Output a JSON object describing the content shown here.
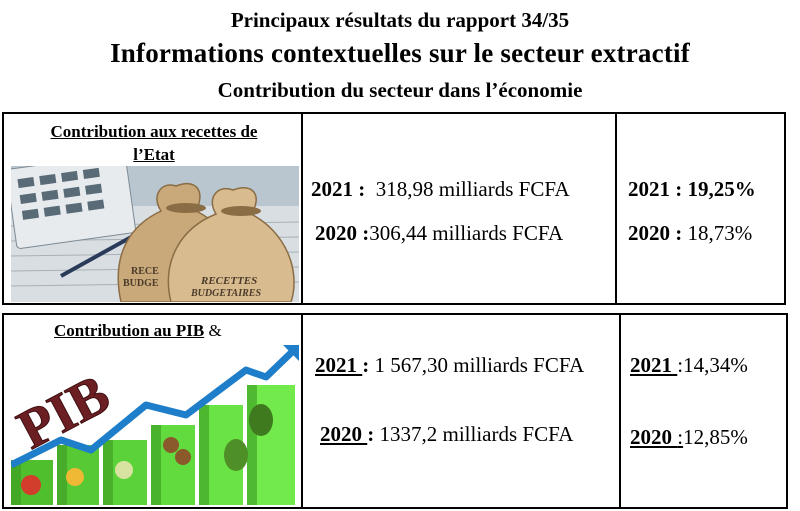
{
  "header": {
    "line1": "Principaux résultats du rapport 34/35",
    "line2": "Informations contextuelles sur le secteur extractif",
    "line3": "Contribution du secteur dans l’économie"
  },
  "recettes": {
    "caption_a": "Contribution aux recettes de",
    "caption_b": "l’Etat",
    "image_bag_labels": [
      "RECETTES BUDGETAIRES",
      "RECETTES BUDGETAIRES"
    ],
    "amounts": [
      {
        "year": "2021 :",
        "value": "318,98 milliards FCFA"
      },
      {
        "year": "2020 :",
        "value": "306,44 milliards FCFA"
      }
    ],
    "percents": [
      {
        "year": "2021 :",
        "value": "19,25%"
      },
      {
        "year": "2020 :",
        "value": "18,73%"
      }
    ]
  },
  "pib": {
    "caption_a": "Contribution au PIB",
    "caption_b": "&",
    "image_word": "PIB",
    "amounts": [
      {
        "year": "2021 ",
        "sep": ":",
        "value": "1 567,30 milliards FCFA"
      },
      {
        "year": "2020 ",
        "sep": ":",
        "value": "1337,2  milliards FCFA"
      }
    ],
    "percents": [
      {
        "year": "2021 ",
        "sep": ":",
        "value": "14,34%"
      },
      {
        "year": "2020 ",
        "sep": ":",
        "value": "12,85%"
      }
    ]
  }
}
